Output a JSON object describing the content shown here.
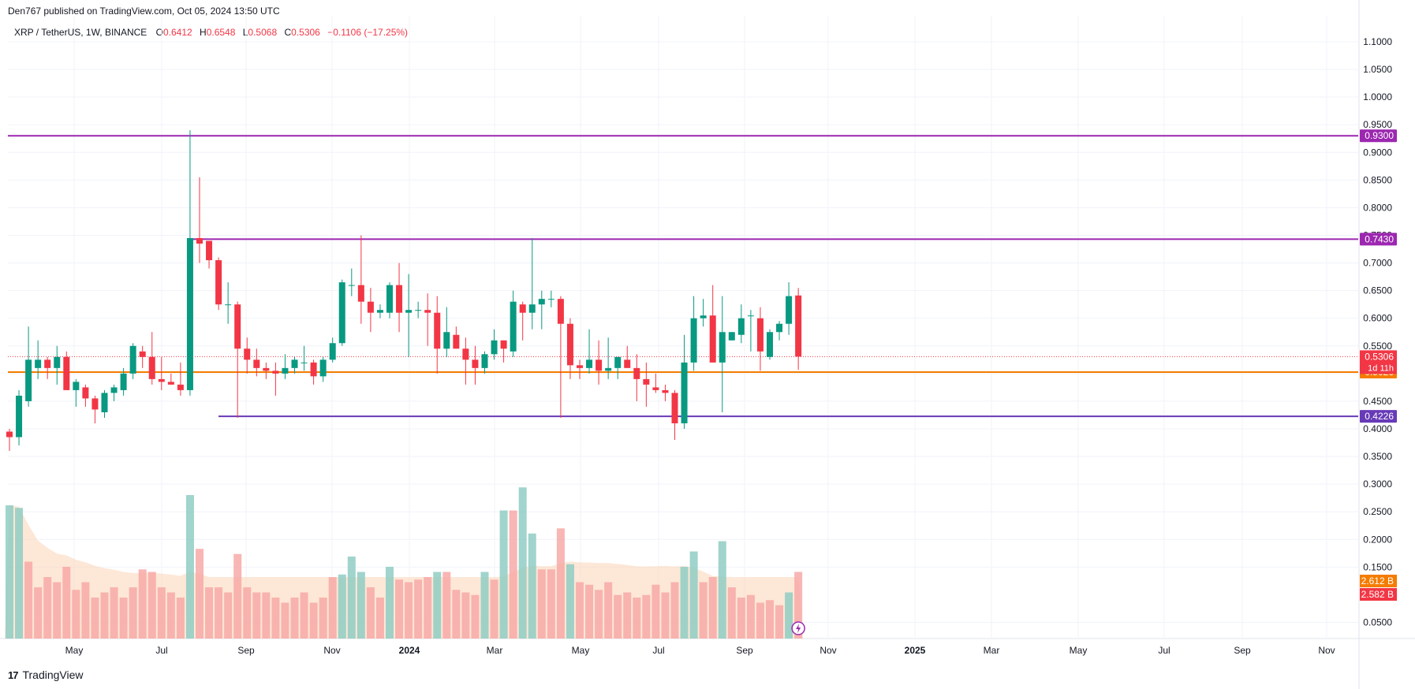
{
  "header": {
    "published_by": "Den767 published on TradingView.com, Oct 05, 2024 13:50 UTC"
  },
  "legend": {
    "symbol": "XRP / TetherUS, 1W, BINANCE",
    "o_label": "O",
    "o": "0.6412",
    "h_label": "H",
    "h": "0.6548",
    "l_label": "L",
    "l": "0.5068",
    "c_label": "C",
    "c": "0.5306",
    "change": "−0.1106 (−17.25%)"
  },
  "brand": {
    "name": "TradingView",
    "logo": "17"
  },
  "colors": {
    "up": "#089981",
    "down": "#f23645",
    "vol_up": "#8fcdc3",
    "vol_down": "#f7a9a7",
    "vol_ma": "#f7a36a",
    "level": "#9c27b0",
    "support": "#7b1fa2",
    "orange": "#f57c00",
    "grid": "#f0f3fa"
  },
  "chart_data": {
    "type": "candlestick",
    "interval": "1W",
    "y_axis": {
      "min": 0.0,
      "max": 1.13,
      "ticks": [
        "1.1000",
        "1.0500",
        "1.0000",
        "0.9500",
        "0.9000",
        "0.8500",
        "0.8000",
        "0.7500",
        "0.7000",
        "0.6500",
        "0.6000",
        "0.5500",
        "0.5000",
        "0.4500",
        "0.4000",
        "0.3500",
        "0.3000",
        "0.2500",
        "0.2000",
        "0.1500",
        "0.0500"
      ]
    },
    "x_axis": {
      "labels": [
        "May",
        "Jul",
        "Sep",
        "Nov",
        "2024",
        "Mar",
        "May",
        "Jul",
        "Sep",
        "Nov",
        "2025",
        "Mar",
        "May",
        "Jul",
        "Sep",
        "Nov"
      ]
    },
    "levels": [
      {
        "name": "resistance-high",
        "value": 0.93,
        "label": "0.9300",
        "color": "#9c27b0",
        "full_width": true
      },
      {
        "name": "resistance",
        "value": 0.743,
        "label": "0.7430",
        "color": "#9c27b0",
        "full_width": false
      },
      {
        "name": "support",
        "value": 0.4226,
        "label": "0.4226",
        "color": "#673ab7",
        "full_width": false
      },
      {
        "name": "orange-line",
        "value": 0.5026,
        "label": "0.5026",
        "color": "#f57c00",
        "full_width": true
      }
    ],
    "last_price": {
      "value": 0.5306,
      "label": "0.5306",
      "countdown": "1d 11h"
    },
    "volume_labels": [
      {
        "label": "2.612 B",
        "color": "#f57c00"
      },
      {
        "label": "2.582 B",
        "color": "#f23645"
      }
    ],
    "candles": [
      [
        0.395,
        0.4,
        0.36,
        0.385
      ],
      [
        0.385,
        0.47,
        0.37,
        0.46
      ],
      [
        0.45,
        0.585,
        0.44,
        0.525
      ],
      [
        0.51,
        0.56,
        0.49,
        0.525
      ],
      [
        0.525,
        0.53,
        0.49,
        0.51
      ],
      [
        0.51,
        0.55,
        0.48,
        0.53
      ],
      [
        0.53,
        0.54,
        0.47,
        0.47
      ],
      [
        0.47,
        0.49,
        0.44,
        0.485
      ],
      [
        0.475,
        0.48,
        0.44,
        0.455
      ],
      [
        0.455,
        0.46,
        0.41,
        0.435
      ],
      [
        0.43,
        0.47,
        0.42,
        0.465
      ],
      [
        0.465,
        0.48,
        0.45,
        0.475
      ],
      [
        0.47,
        0.51,
        0.46,
        0.5
      ],
      [
        0.5,
        0.555,
        0.49,
        0.55
      ],
      [
        0.54,
        0.55,
        0.51,
        0.53
      ],
      [
        0.53,
        0.575,
        0.48,
        0.49
      ],
      [
        0.49,
        0.53,
        0.47,
        0.485
      ],
      [
        0.485,
        0.5,
        0.48,
        0.48
      ],
      [
        0.48,
        0.52,
        0.46,
        0.47
      ],
      [
        0.47,
        0.94,
        0.46,
        0.745
      ],
      [
        0.745,
        0.855,
        0.7,
        0.735
      ],
      [
        0.74,
        0.74,
        0.69,
        0.705
      ],
      [
        0.705,
        0.71,
        0.615,
        0.625
      ],
      [
        0.625,
        0.665,
        0.59,
        0.625
      ],
      [
        0.625,
        0.63,
        0.42,
        0.545
      ],
      [
        0.545,
        0.565,
        0.5,
        0.525
      ],
      [
        0.525,
        0.545,
        0.495,
        0.51
      ],
      [
        0.51,
        0.52,
        0.49,
        0.505
      ],
      [
        0.505,
        0.52,
        0.46,
        0.5
      ],
      [
        0.5,
        0.535,
        0.49,
        0.51
      ],
      [
        0.51,
        0.53,
        0.5,
        0.525
      ],
      [
        0.52,
        0.55,
        0.505,
        0.52
      ],
      [
        0.52,
        0.525,
        0.48,
        0.495
      ],
      [
        0.495,
        0.53,
        0.485,
        0.525
      ],
      [
        0.525,
        0.565,
        0.52,
        0.555
      ],
      [
        0.555,
        0.67,
        0.55,
        0.665
      ],
      [
        0.66,
        0.69,
        0.64,
        0.66
      ],
      [
        0.66,
        0.75,
        0.59,
        0.63
      ],
      [
        0.63,
        0.655,
        0.575,
        0.61
      ],
      [
        0.61,
        0.625,
        0.6,
        0.615
      ],
      [
        0.61,
        0.665,
        0.6,
        0.66
      ],
      [
        0.66,
        0.7,
        0.575,
        0.61
      ],
      [
        0.61,
        0.68,
        0.53,
        0.615
      ],
      [
        0.615,
        0.63,
        0.6,
        0.615
      ],
      [
        0.615,
        0.645,
        0.55,
        0.61
      ],
      [
        0.61,
        0.64,
        0.5,
        0.545
      ],
      [
        0.545,
        0.62,
        0.53,
        0.575
      ],
      [
        0.57,
        0.585,
        0.545,
        0.545
      ],
      [
        0.545,
        0.565,
        0.48,
        0.525
      ],
      [
        0.525,
        0.55,
        0.48,
        0.51
      ],
      [
        0.51,
        0.54,
        0.5,
        0.535
      ],
      [
        0.535,
        0.58,
        0.525,
        0.56
      ],
      [
        0.56,
        0.56,
        0.52,
        0.545
      ],
      [
        0.54,
        0.65,
        0.53,
        0.63
      ],
      [
        0.625,
        0.63,
        0.56,
        0.61
      ],
      [
        0.61,
        0.745,
        0.58,
        0.625
      ],
      [
        0.625,
        0.65,
        0.58,
        0.635
      ],
      [
        0.635,
        0.65,
        0.62,
        0.635
      ],
      [
        0.635,
        0.64,
        0.42,
        0.59
      ],
      [
        0.59,
        0.6,
        0.49,
        0.515
      ],
      [
        0.515,
        0.525,
        0.49,
        0.51
      ],
      [
        0.51,
        0.58,
        0.5,
        0.525
      ],
      [
        0.525,
        0.56,
        0.48,
        0.505
      ],
      [
        0.505,
        0.565,
        0.49,
        0.51
      ],
      [
        0.51,
        0.53,
        0.49,
        0.53
      ],
      [
        0.525,
        0.55,
        0.52,
        0.51
      ],
      [
        0.51,
        0.535,
        0.45,
        0.49
      ],
      [
        0.49,
        0.52,
        0.44,
        0.48
      ],
      [
        0.475,
        0.5,
        0.465,
        0.47
      ],
      [
        0.47,
        0.48,
        0.45,
        0.465
      ],
      [
        0.465,
        0.47,
        0.38,
        0.41
      ],
      [
        0.41,
        0.57,
        0.4,
        0.52
      ],
      [
        0.52,
        0.64,
        0.505,
        0.6
      ],
      [
        0.6,
        0.635,
        0.585,
        0.605
      ],
      [
        0.605,
        0.66,
        0.52,
        0.52
      ],
      [
        0.52,
        0.64,
        0.43,
        0.575
      ],
      [
        0.56,
        0.575,
        0.56,
        0.575
      ],
      [
        0.57,
        0.625,
        0.555,
        0.6
      ],
      [
        0.605,
        0.615,
        0.54,
        0.605
      ],
      [
        0.6,
        0.62,
        0.505,
        0.54
      ],
      [
        0.53,
        0.58,
        0.525,
        0.575
      ],
      [
        0.575,
        0.595,
        0.56,
        0.59
      ],
      [
        0.59,
        0.665,
        0.57,
        0.64
      ],
      [
        0.6412,
        0.6548,
        0.5068,
        0.5306
      ]
    ],
    "volumes": [
      [
        0.26,
        1
      ],
      [
        0.255,
        1
      ],
      [
        0.15,
        0
      ],
      [
        0.1,
        0
      ],
      [
        0.12,
        0
      ],
      [
        0.11,
        0
      ],
      [
        0.14,
        0
      ],
      [
        0.095,
        0
      ],
      [
        0.11,
        0
      ],
      [
        0.08,
        0
      ],
      [
        0.09,
        0
      ],
      [
        0.1,
        0
      ],
      [
        0.08,
        0
      ],
      [
        0.1,
        0
      ],
      [
        0.135,
        0
      ],
      [
        0.13,
        0
      ],
      [
        0.1,
        0
      ],
      [
        0.09,
        0
      ],
      [
        0.08,
        0
      ],
      [
        0.28,
        1
      ],
      [
        0.175,
        0
      ],
      [
        0.1,
        0
      ],
      [
        0.1,
        0
      ],
      [
        0.09,
        0
      ],
      [
        0.165,
        0
      ],
      [
        0.1,
        0
      ],
      [
        0.09,
        0
      ],
      [
        0.09,
        0
      ],
      [
        0.08,
        0
      ],
      [
        0.07,
        0
      ],
      [
        0.08,
        0
      ],
      [
        0.09,
        0
      ],
      [
        0.07,
        0
      ],
      [
        0.08,
        0
      ],
      [
        0.12,
        0
      ],
      [
        0.125,
        1
      ],
      [
        0.16,
        1
      ],
      [
        0.13,
        1
      ],
      [
        0.1,
        0
      ],
      [
        0.08,
        0
      ],
      [
        0.14,
        1
      ],
      [
        0.115,
        0
      ],
      [
        0.11,
        0
      ],
      [
        0.115,
        0
      ],
      [
        0.12,
        0
      ],
      [
        0.13,
        1
      ],
      [
        0.13,
        0
      ],
      [
        0.095,
        0
      ],
      [
        0.09,
        0
      ],
      [
        0.085,
        0
      ],
      [
        0.13,
        1
      ],
      [
        0.115,
        0
      ],
      [
        0.25,
        1
      ],
      [
        0.25,
        0
      ],
      [
        0.295,
        1
      ],
      [
        0.205,
        1
      ],
      [
        0.135,
        0
      ],
      [
        0.135,
        0
      ],
      [
        0.215,
        0
      ],
      [
        0.145,
        1
      ],
      [
        0.11,
        0
      ],
      [
        0.105,
        0
      ],
      [
        0.095,
        0
      ],
      [
        0.11,
        0
      ],
      [
        0.085,
        0
      ],
      [
        0.09,
        0
      ],
      [
        0.08,
        0
      ],
      [
        0.085,
        0
      ],
      [
        0.105,
        0
      ],
      [
        0.09,
        0
      ],
      [
        0.11,
        0
      ],
      [
        0.14,
        1
      ],
      [
        0.17,
        1
      ],
      [
        0.11,
        0
      ],
      [
        0.12,
        0
      ],
      [
        0.19,
        1
      ],
      [
        0.1,
        0
      ],
      [
        0.08,
        0
      ],
      [
        0.085,
        0
      ],
      [
        0.07,
        0
      ],
      [
        0.075,
        0
      ],
      [
        0.065,
        0
      ],
      [
        0.09,
        1
      ],
      [
        0.13,
        0
      ]
    ]
  }
}
